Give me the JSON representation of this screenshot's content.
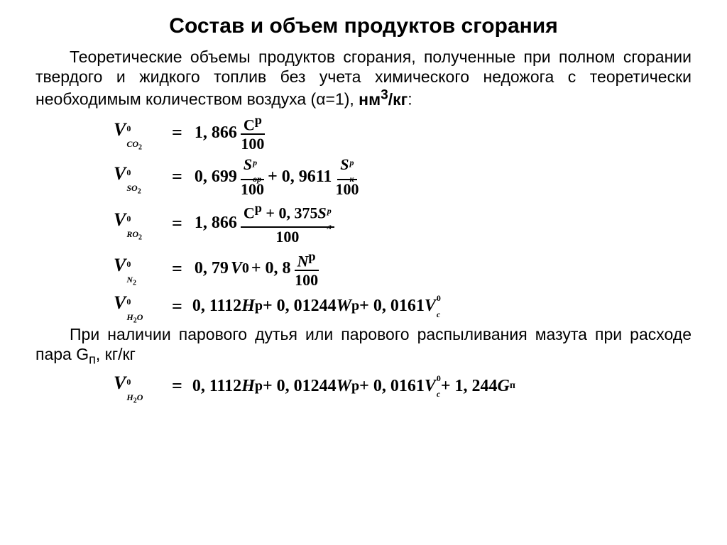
{
  "title": "Состав и объем продуктов сгорания",
  "intro": {
    "p1_prefix": "Теоретические объемы продуктов сгорания, полученные при полном сгорании твердого и жидкого топлив без учета химического недожога с теоретически необходимым количеством воздуха (α=1), ",
    "unit": "нм",
    "unit_sup": "3",
    "unit_suffix": "/кг",
    "colon": ":"
  },
  "f_co2": {
    "V": "V",
    "sup0": "0",
    "sub": "CO",
    "subnum": "2",
    "coef": "1, 866",
    "num_sym": "C",
    "num_sup": "р",
    "den": "100"
  },
  "f_so2": {
    "V": "V",
    "sup0": "0",
    "sub": "SO",
    "subnum": "2",
    "coef1": "0, 699",
    "n1_sym": "S",
    "n1_sub": "ор",
    "n1_sup": "p",
    "d1": "100",
    "plus": "+ 0, 9611",
    "n2_sym": "S",
    "n2_sub": "к",
    "n2_sup": "p",
    "d2": "100"
  },
  "f_ro2": {
    "V": "V",
    "sup0": "0",
    "sub": "RO",
    "subnum": "2",
    "coef": "1, 866",
    "num_a": "C",
    "num_a_sup": "р",
    "plus": " + 0, 375",
    "num_b": "S",
    "num_b_sub": "л",
    "num_b_sup": "p",
    "den": "100"
  },
  "f_n2": {
    "V": "V",
    "sup0": "0",
    "sub": "N",
    "subnum": "2",
    "t1": "0, 79",
    "t1_v": "V",
    "t1_sup": "0",
    "t2": " + 0, 8",
    "num_sym": "N",
    "num_sup": "р",
    "den": "100"
  },
  "f_h2o": {
    "V": "V",
    "sup0": "0",
    "sub": "H",
    "subnum": "2",
    "subO": "O",
    "expr_a": "0, 1112",
    "H": "H",
    "H_sup": "р",
    "expr_b": " + 0, 01244",
    "W": "W",
    "W_sup": "р",
    "expr_c": " + 0, 0161",
    "Vc": "V",
    "Vc_sub": "с",
    "Vc_sup": "0"
  },
  "para2": {
    "prefix": "При наличии парового дутья или парового распыливания мазута при расходе пара G",
    "sub": "п",
    "suffix": ", кг/кг"
  },
  "f_h2o_2": {
    "V": "V",
    "sup0": "0",
    "sub": "H",
    "subnum": "2",
    "subO": "O",
    "expr_a": "0, 1112",
    "H": "H",
    "H_sup": "р",
    "expr_b": " + 0, 01244",
    "W": "W",
    "W_sup": "р",
    "expr_c": " + 0, 0161",
    "Vc": "V",
    "Vc_sub": "с",
    "Vc_sup": "0",
    "expr_d": " + 1, 244",
    "G": "G",
    "G_sub": "п"
  },
  "colors": {
    "text": "#000000",
    "bg": "#ffffff"
  },
  "fonts": {
    "body": "Arial",
    "math": "Cambria Math"
  }
}
